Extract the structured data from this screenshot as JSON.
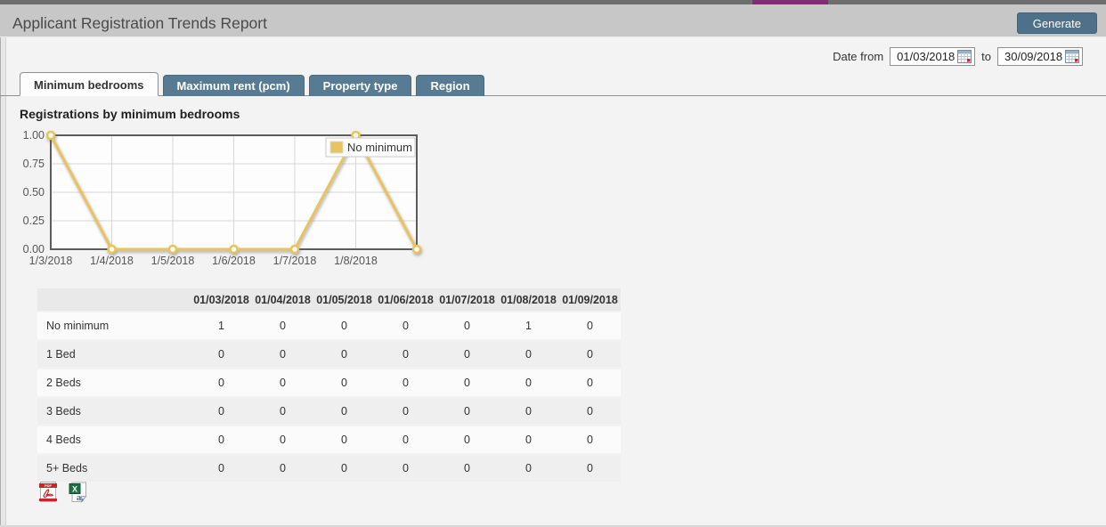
{
  "window": {
    "title": "Applicant Registration Trends Report",
    "generate_label": "Generate"
  },
  "colors": {
    "accent_purple": "#7b2e72",
    "topbar_gray": "#6d6d6d",
    "button_blue": "#4f7089",
    "tab_blue": "#567b93",
    "line_gold": "#e8c45f"
  },
  "filters": {
    "date_from_label": "Date from",
    "date_from_value": "01/03/2018",
    "to_label": "to",
    "date_to_value": "30/09/2018"
  },
  "tabs": [
    {
      "label": "Minimum bedrooms",
      "active": true
    },
    {
      "label": "Maximum rent (pcm)",
      "active": false
    },
    {
      "label": "Property type",
      "active": false
    },
    {
      "label": "Region",
      "active": false
    }
  ],
  "section_title": "Registrations by minimum bedrooms",
  "chart_data": {
    "type": "line",
    "x": [
      "1/3/2018",
      "1/4/2018",
      "1/5/2018",
      "1/6/2018",
      "1/7/2018",
      "1/8/2018",
      "1/9/2018"
    ],
    "x_labels_visible": [
      "1/3/2018",
      "1/4/2018",
      "1/5/2018",
      "1/6/2018",
      "1/7/2018",
      "1/8/2018"
    ],
    "series": [
      {
        "name": "No minimum",
        "values": [
          1,
          0,
          0,
          0,
          0,
          1,
          0
        ],
        "color": "#e8c45f"
      }
    ],
    "ylim": [
      0,
      1
    ],
    "yticks": [
      0,
      0.25,
      0.5,
      0.75,
      1
    ],
    "ytick_labels": [
      "0.00",
      "0.25",
      "0.50",
      "0.75",
      "1.00"
    ],
    "grid": true,
    "legend_position": "top-right"
  },
  "table": {
    "columns": [
      "01/03/2018",
      "01/04/2018",
      "01/05/2018",
      "01/06/2018",
      "01/07/2018",
      "01/08/2018",
      "01/09/2018"
    ],
    "rows": [
      {
        "label": "No minimum",
        "values": [
          1,
          0,
          0,
          0,
          0,
          1,
          0
        ]
      },
      {
        "label": "1 Bed",
        "values": [
          0,
          0,
          0,
          0,
          0,
          0,
          0
        ]
      },
      {
        "label": "2 Beds",
        "values": [
          0,
          0,
          0,
          0,
          0,
          0,
          0
        ]
      },
      {
        "label": "3 Beds",
        "values": [
          0,
          0,
          0,
          0,
          0,
          0,
          0
        ]
      },
      {
        "label": "4 Beds",
        "values": [
          0,
          0,
          0,
          0,
          0,
          0,
          0
        ]
      },
      {
        "label": "5+ Beds",
        "values": [
          0,
          0,
          0,
          0,
          0,
          0,
          0
        ]
      }
    ]
  },
  "export": {
    "pdf_icon_text": "PDF",
    "excel_icon_x": "X",
    "excel_icon_a": "a,"
  }
}
